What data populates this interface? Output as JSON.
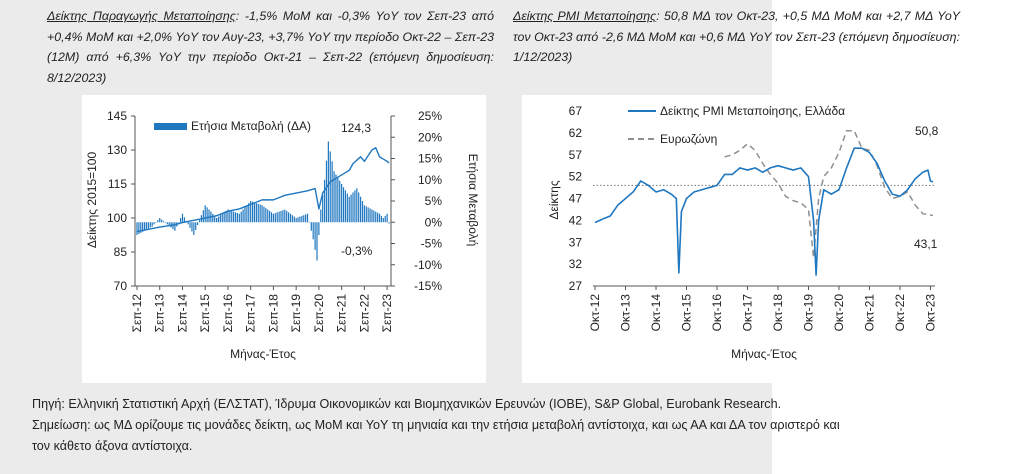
{
  "captions": {
    "left": {
      "title": "Δείκτης Παραγωγής Μεταποίησης",
      "text": ": -1,5% MoM και -0,3% YoY τον Σεπ-23 από +0,4% MoM και +2,0% YoY τον Αυγ-23, +3,7% YoY την περίοδο Οκτ-22 – Σεπ-23 (12M) από +6,3% YoY την περίοδο Οκτ-21 – Σεπ-22 (επόμενη δημοσίευση: 8/12/2023)"
    },
    "right": {
      "title": "Δείκτης PMI Μεταποίησης",
      "text": ": 50,8 ΜΔ τον Οκτ-23, +0,5 ΜΔ MoM και +2,7 ΜΔ YoY τον Οκτ-23 από -2,6 ΜΔ MoM και +0,6 ΜΔ YoY τον Σεπ-23 (επόμενη δημοσίευση: 1/12/2023)"
    }
  },
  "footer": {
    "source": "Πηγή: Ελληνική Στατιστική Αρχή (ΕΛΣΤΑΤ), Ίδρυμα Οικονομικών και Βιομηχανικών Ερευνών (ΙΟΒΕ), S&P Global, Eurobank Research.",
    "note_line1": "Σημείωση: ως ΜΔ ορίζουμε τις μονάδες δείκτη, ως MoM και YoY τη μηνιαία και την ετήσια μεταβολή αντίστοιχα, και ως ΑΑ και ΔΑ τον αριστερό και",
    "note_line2": "τον κάθετο άξονα αντίστοιχα."
  },
  "chart_data": [
    {
      "type": "bar",
      "y_left_label": "Δείκτης 2015=100",
      "y_right_label": "Ετήσια Μεταβολή",
      "xlabel": "Μήνας-Έτος",
      "legend_bar": "Ετήσια Μεταβολή (ΔΑ)",
      "ylim_left": [
        70,
        145
      ],
      "yticks_left": [
        "145",
        "130",
        "115",
        "100",
        "85",
        "70"
      ],
      "ylim_right": [
        -15,
        25
      ],
      "yticks_right": [
        "25%",
        "20%",
        "15%",
        "10%",
        "5%",
        "0%",
        "-5%",
        "-10%",
        "-15%"
      ],
      "x_labels": [
        "Σεπ-12",
        "Σεπ-13",
        "Σεπ-14",
        "Σεπ-15",
        "Σεπ-16",
        "Σεπ-17",
        "Σεπ-18",
        "Σεπ-19",
        "Σεπ-20",
        "Σεπ-21",
        "Σεπ-22",
        "Σεπ-23"
      ],
      "ann_last_level": "124,3",
      "ann_last_yoy": "-0,3%",
      "line_color": "#1f77c0",
      "bar_color": "#1f77c0",
      "line_anchors": [
        [
          0,
          94
        ],
        [
          6,
          95
        ],
        [
          12,
          96
        ],
        [
          20,
          97
        ],
        [
          24,
          98
        ],
        [
          30,
          99
        ],
        [
          36,
          100
        ],
        [
          42,
          101
        ],
        [
          48,
          103
        ],
        [
          54,
          104
        ],
        [
          60,
          106
        ],
        [
          66,
          108
        ],
        [
          72,
          108
        ],
        [
          78,
          110
        ],
        [
          84,
          111
        ],
        [
          90,
          112
        ],
        [
          94,
          113
        ],
        [
          96,
          104
        ],
        [
          98,
          111
        ],
        [
          102,
          116
        ],
        [
          108,
          119
        ],
        [
          112,
          121
        ],
        [
          114,
          124
        ],
        [
          118,
          127
        ],
        [
          120,
          125
        ],
        [
          124,
          130
        ],
        [
          126,
          131
        ],
        [
          128,
          127
        ],
        [
          132,
          125
        ],
        [
          133,
          124.3
        ]
      ],
      "bar_anchors": [
        [
          0,
          -3
        ],
        [
          8,
          -1
        ],
        [
          12,
          1
        ],
        [
          20,
          -2
        ],
        [
          24,
          2
        ],
        [
          30,
          -3
        ],
        [
          36,
          4
        ],
        [
          42,
          1
        ],
        [
          48,
          3
        ],
        [
          54,
          2
        ],
        [
          60,
          5
        ],
        [
          66,
          4
        ],
        [
          72,
          2
        ],
        [
          78,
          3
        ],
        [
          84,
          1
        ],
        [
          90,
          2
        ],
        [
          93,
          -4
        ],
        [
          95,
          -9
        ],
        [
          97,
          3
        ],
        [
          99,
          10
        ],
        [
          101,
          19
        ],
        [
          104,
          12
        ],
        [
          108,
          9
        ],
        [
          112,
          6
        ],
        [
          116,
          8
        ],
        [
          120,
          4
        ],
        [
          124,
          3
        ],
        [
          128,
          2
        ],
        [
          130,
          1
        ],
        [
          132,
          2
        ],
        [
          133,
          -0.3
        ]
      ]
    },
    {
      "type": "line",
      "ylabel": "Δείκτης",
      "xlabel": "Μήνας-Έτος",
      "ylim": [
        27,
        67
      ],
      "yticks": [
        "67",
        "62",
        "57",
        "52",
        "47",
        "42",
        "37",
        "32",
        "27"
      ],
      "x_labels": [
        "Οκτ-12",
        "Οκτ-13",
        "Οκτ-14",
        "Οκτ-15",
        "Οκτ-16",
        "Οκτ-17",
        "Οκτ-18",
        "Οκτ-19",
        "Οκτ-20",
        "Οκτ-21",
        "Οκτ-22",
        "Οκτ-23"
      ],
      "reference_line": 50,
      "ann_greece": "50,8",
      "ann_euro": "43,1",
      "series": [
        {
          "name": "Δείκτης PMI Μεταποίησης, Ελλάδα",
          "color": "#1f77c0",
          "style": "solid",
          "start": 0,
          "anchors": [
            [
              0,
              41.5
            ],
            [
              3,
              42.3
            ],
            [
              6,
              43
            ],
            [
              9,
              45.5
            ],
            [
              12,
              47
            ],
            [
              15,
              48.5
            ],
            [
              18,
              51
            ],
            [
              21,
              50
            ],
            [
              24,
              48.5
            ],
            [
              27,
              49
            ],
            [
              30,
              48
            ],
            [
              32,
              47
            ],
            [
              33,
              30
            ],
            [
              34,
              44
            ],
            [
              36,
              47
            ],
            [
              39,
              48.5
            ],
            [
              42,
              49
            ],
            [
              45,
              49.5
            ],
            [
              48,
              50
            ],
            [
              51,
              52.5
            ],
            [
              54,
              52.5
            ],
            [
              57,
              54
            ],
            [
              60,
              53.5
            ],
            [
              63,
              54
            ],
            [
              66,
              53
            ],
            [
              69,
              54
            ],
            [
              72,
              54.5
            ],
            [
              75,
              54
            ],
            [
              78,
              53.5
            ],
            [
              81,
              54
            ],
            [
              84,
              52
            ],
            [
              86,
              42
            ],
            [
              87,
              29.5
            ],
            [
              88,
              42
            ],
            [
              90,
              49
            ],
            [
              93,
              48
            ],
            [
              96,
              49
            ],
            [
              99,
              54
            ],
            [
              102,
              58.5
            ],
            [
              105,
              58.5
            ],
            [
              108,
              57.5
            ],
            [
              111,
              55
            ],
            [
              114,
              51
            ],
            [
              117,
              48
            ],
            [
              120,
              47.5
            ],
            [
              123,
              49
            ],
            [
              126,
              51.5
            ],
            [
              129,
              53
            ],
            [
              131,
              53.5
            ],
            [
              132,
              51
            ],
            [
              133,
              50.8
            ]
          ]
        },
        {
          "name": "Ευρωζώνη",
          "color": "#8f8f8f",
          "style": "dashed",
          "start": 51,
          "anchors": [
            [
              51,
              56.5
            ],
            [
              54,
              57
            ],
            [
              57,
              58
            ],
            [
              60,
              59.5
            ],
            [
              63,
              58
            ],
            [
              66,
              55
            ],
            [
              69,
              52.5
            ],
            [
              72,
              50.5
            ],
            [
              75,
              47.5
            ],
            [
              78,
              46.5
            ],
            [
              81,
              46
            ],
            [
              84,
              44.5
            ],
            [
              86,
              33.5
            ],
            [
              88,
              47
            ],
            [
              90,
              52
            ],
            [
              93,
              54
            ],
            [
              96,
              57.5
            ],
            [
              99,
              62.5
            ],
            [
              102,
              62.5
            ],
            [
              105,
              58.5
            ],
            [
              108,
              58
            ],
            [
              111,
              54.5
            ],
            [
              114,
              49.5
            ],
            [
              117,
              47
            ],
            [
              120,
              47.5
            ],
            [
              123,
              48.5
            ],
            [
              126,
              45.5
            ],
            [
              129,
              43.5
            ],
            [
              131,
              43.4
            ],
            [
              133,
              43.1
            ]
          ]
        }
      ]
    }
  ]
}
